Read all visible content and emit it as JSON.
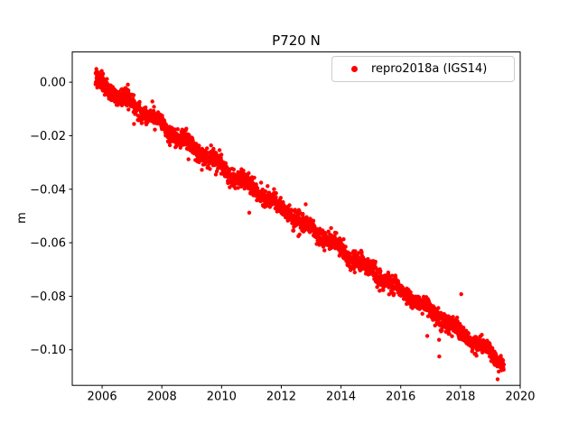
{
  "figure": {
    "background": "#ffffff"
  },
  "chart_data": {
    "type": "scatter",
    "title": "P720 N",
    "xlabel": "",
    "ylabel": "m",
    "xlim": [
      2005.0,
      2020.0
    ],
    "ylim": [
      -0.1133,
      0.0113
    ],
    "xticks": [
      2006,
      2008,
      2010,
      2012,
      2014,
      2016,
      2018,
      2020
    ],
    "xtick_labels": [
      "2006",
      "2008",
      "2010",
      "2012",
      "2014",
      "2016",
      "2018",
      "2020"
    ],
    "yticks": [
      0.0,
      -0.02,
      -0.04,
      -0.06,
      -0.08,
      -0.1
    ],
    "ytick_labels": [
      "0.00",
      "−0.02",
      "−0.04",
      "−0.06",
      "−0.08",
      "−0.10"
    ],
    "grid": false,
    "legend": {
      "position": "upper-right",
      "entries": [
        {
          "label": "repro2018a (IGS14)",
          "color": "#ff0000",
          "marker": "dot"
        }
      ]
    },
    "series": [
      {
        "name": "repro2018a (IGS14)",
        "color": "#ff0000",
        "marker_radius_px": 2.2,
        "x_start": 2005.78,
        "x_end": 2019.45,
        "trend": {
          "x": [
            2005.78,
            2019.45
          ],
          "y": [
            0.001,
            -0.1045
          ]
        },
        "annual_amplitude_m": 0.0012,
        "noise_sigma_m": 0.0017,
        "outlier_fraction": 0.02,
        "n_points": 2400,
        "sampled_yearly": {
          "x": [
            2006,
            2007,
            2008,
            2009,
            2010,
            2011,
            2012,
            2013,
            2014,
            2015,
            2016,
            2017,
            2018,
            2019
          ],
          "y": [
            -0.001,
            -0.008,
            -0.016,
            -0.024,
            -0.032,
            -0.039,
            -0.047,
            -0.055,
            -0.062,
            -0.07,
            -0.078,
            -0.086,
            -0.093,
            -0.101
          ]
        }
      }
    ]
  }
}
